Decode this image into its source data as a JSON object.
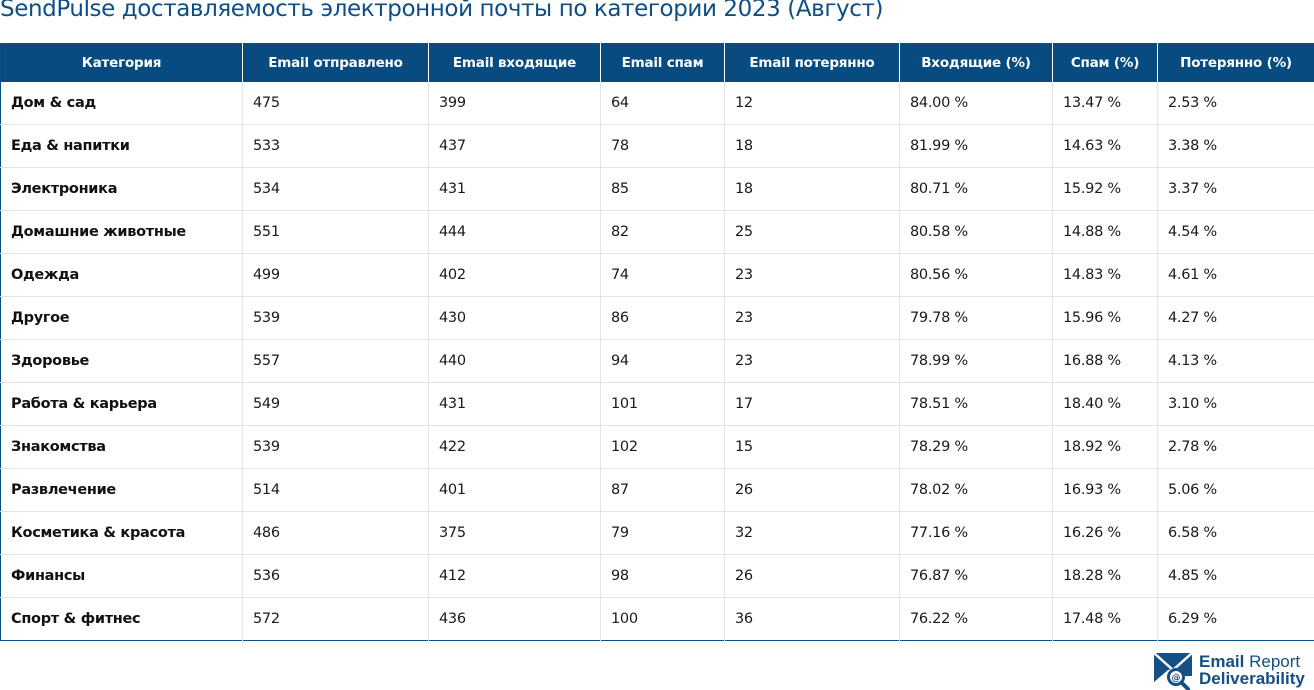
{
  "title": "SendPulse доставляемость электронной почты по категории 2023 (Август)",
  "table": {
    "headers": [
      "Категория",
      "Email отправлено",
      "Email входящие",
      "Email спам",
      "Email потерянно",
      "Входящие (%)",
      "Спам (%)",
      "Потерянно (%)"
    ],
    "rows": [
      [
        "Дом & сад",
        "475",
        "399",
        "64",
        "12",
        "84.00 %",
        "13.47 %",
        "2.53 %"
      ],
      [
        "Еда & напитки",
        "533",
        "437",
        "78",
        "18",
        "81.99 %",
        "14.63 %",
        "3.38 %"
      ],
      [
        "Электроника",
        "534",
        "431",
        "85",
        "18",
        "80.71 %",
        "15.92 %",
        "3.37 %"
      ],
      [
        "Домашние животные",
        "551",
        "444",
        "82",
        "25",
        "80.58 %",
        "14.88 %",
        "4.54 %"
      ],
      [
        "Одежда",
        "499",
        "402",
        "74",
        "23",
        "80.56 %",
        "14.83 %",
        "4.61 %"
      ],
      [
        "Другое",
        "539",
        "430",
        "86",
        "23",
        "79.78 %",
        "15.96 %",
        "4.27 %"
      ],
      [
        "Здоровье",
        "557",
        "440",
        "94",
        "23",
        "78.99 %",
        "16.88 %",
        "4.13 %"
      ],
      [
        "Работа & карьера",
        "549",
        "431",
        "101",
        "17",
        "78.51 %",
        "18.40 %",
        "3.10 %"
      ],
      [
        "Знакомства",
        "539",
        "422",
        "102",
        "15",
        "78.29 %",
        "18.92 %",
        "2.78 %"
      ],
      [
        "Развлечение",
        "514",
        "401",
        "87",
        "26",
        "78.02 %",
        "16.93 %",
        "5.06 %"
      ],
      [
        "Косметика & красота",
        "486",
        "375",
        "79",
        "32",
        "77.16 %",
        "16.26 %",
        "6.58 %"
      ],
      [
        "Финансы",
        "536",
        "412",
        "98",
        "26",
        "76.87 %",
        "18.28 %",
        "4.85 %"
      ],
      [
        "Спорт & фитнес",
        "572",
        "436",
        "100",
        "36",
        "76.22 %",
        "17.48 %",
        "6.29 %"
      ]
    ]
  },
  "logo": {
    "icon": "envelope-magnifier-icon",
    "line1_bold": "Email",
    "line1_rest": " Report",
    "line2": "Deliverability"
  },
  "colors": {
    "header_bg": "#084b80",
    "title": "#0f4d85",
    "logo": "#164f84"
  }
}
